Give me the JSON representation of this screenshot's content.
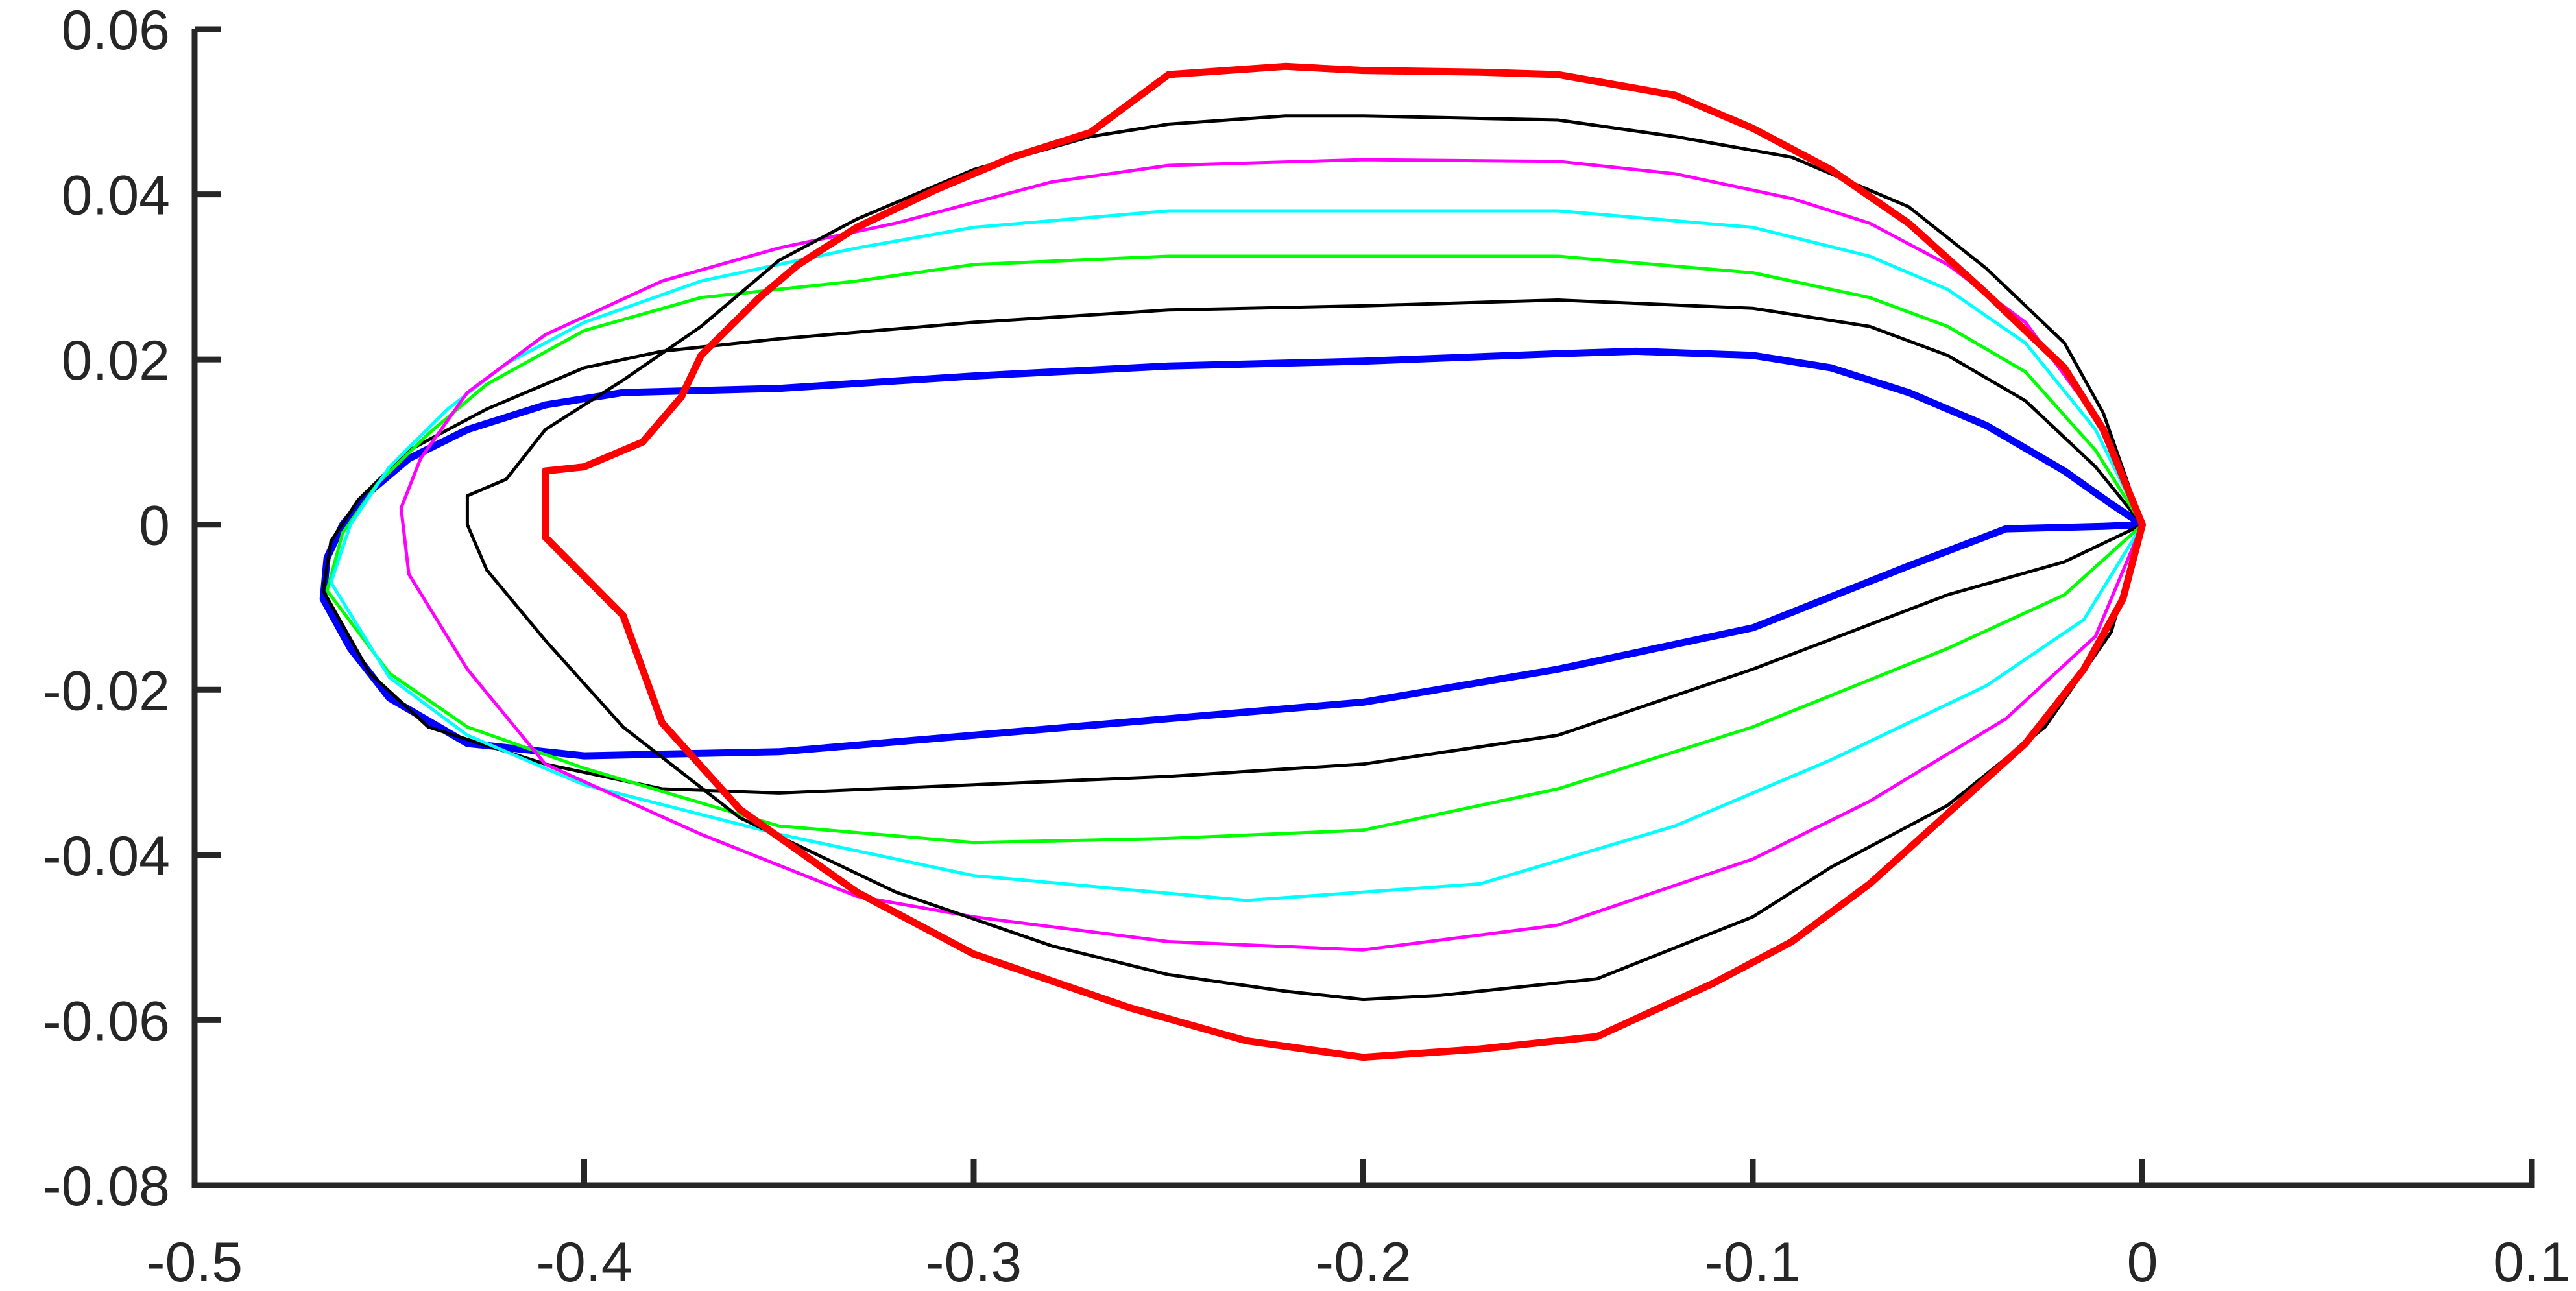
{
  "chart_data": {
    "type": "line",
    "title": "",
    "xlabel": "",
    "ylabel": "",
    "xlim": [
      -0.5,
      0.1
    ],
    "ylim": [
      -0.08,
      0.06
    ],
    "grid": false,
    "legend": "none",
    "xticks": [
      "-0.5",
      "-0.4",
      "-0.3",
      "-0.2",
      "-0.1",
      "0",
      "0.1"
    ],
    "yticks": [
      "0.06",
      "0.04",
      "0.02",
      "0",
      "-0.02",
      "-0.04",
      "-0.06",
      "-0.08"
    ],
    "series": [
      {
        "color": "#0000ff",
        "width": "thick",
        "points": [
          [
            -0.467,
            -0.009
          ],
          [
            -0.466,
            -0.004
          ],
          [
            -0.462,
            0.0
          ],
          [
            -0.455,
            0.004
          ],
          [
            -0.445,
            0.008
          ],
          [
            -0.43,
            0.0115
          ],
          [
            -0.41,
            0.0145
          ],
          [
            -0.39,
            0.016
          ],
          [
            -0.35,
            0.0165
          ],
          [
            -0.3,
            0.018
          ],
          [
            -0.25,
            0.0192
          ],
          [
            -0.2,
            0.0198
          ],
          [
            -0.15,
            0.0207
          ],
          [
            -0.13,
            0.021
          ],
          [
            -0.1,
            0.0205
          ],
          [
            -0.08,
            0.019
          ],
          [
            -0.06,
            0.016
          ],
          [
            -0.04,
            0.012
          ],
          [
            -0.02,
            0.0065
          ],
          [
            -0.008,
            0.0025
          ],
          [
            0.0,
            0.0
          ],
          [
            -0.01,
            -0.0002
          ],
          [
            -0.035,
            -0.0005
          ],
          [
            -0.06,
            -0.005
          ],
          [
            -0.1,
            -0.0125
          ],
          [
            -0.15,
            -0.0175
          ],
          [
            -0.2,
            -0.0215
          ],
          [
            -0.25,
            -0.0235
          ],
          [
            -0.3,
            -0.0255
          ],
          [
            -0.35,
            -0.0275
          ],
          [
            -0.4,
            -0.028
          ],
          [
            -0.43,
            -0.0265
          ],
          [
            -0.45,
            -0.021
          ],
          [
            -0.46,
            -0.015
          ],
          [
            -0.467,
            -0.009
          ]
        ]
      },
      {
        "color": "#000000",
        "width": "thin",
        "points": [
          [
            -0.467,
            -0.008
          ],
          [
            -0.465,
            -0.002
          ],
          [
            -0.458,
            0.003
          ],
          [
            -0.445,
            0.009
          ],
          [
            -0.425,
            0.014
          ],
          [
            -0.4,
            0.019
          ],
          [
            -0.38,
            0.021
          ],
          [
            -0.35,
            0.0225
          ],
          [
            -0.3,
            0.0245
          ],
          [
            -0.25,
            0.026
          ],
          [
            -0.2,
            0.0265
          ],
          [
            -0.15,
            0.0272
          ],
          [
            -0.1,
            0.0262
          ],
          [
            -0.07,
            0.024
          ],
          [
            -0.05,
            0.0205
          ],
          [
            -0.03,
            0.015
          ],
          [
            -0.012,
            0.007
          ],
          [
            0.0,
            0.0
          ],
          [
            -0.02,
            -0.0045
          ],
          [
            -0.05,
            -0.0085
          ],
          [
            -0.1,
            -0.0175
          ],
          [
            -0.15,
            -0.0255
          ],
          [
            -0.2,
            -0.029
          ],
          [
            -0.25,
            -0.0305
          ],
          [
            -0.3,
            -0.0315
          ],
          [
            -0.35,
            -0.0325
          ],
          [
            -0.38,
            -0.032
          ],
          [
            -0.41,
            -0.029
          ],
          [
            -0.44,
            -0.0245
          ],
          [
            -0.455,
            -0.018
          ],
          [
            -0.467,
            -0.008
          ]
        ]
      },
      {
        "color": "#00ff00",
        "width": "thin",
        "points": [
          [
            -0.466,
            -0.008
          ],
          [
            -0.462,
            -0.001
          ],
          [
            -0.453,
            0.005
          ],
          [
            -0.44,
            0.011
          ],
          [
            -0.425,
            0.017
          ],
          [
            -0.4,
            0.0235
          ],
          [
            -0.37,
            0.0275
          ],
          [
            -0.33,
            0.0295
          ],
          [
            -0.3,
            0.0315
          ],
          [
            -0.25,
            0.0325
          ],
          [
            -0.2,
            0.0325
          ],
          [
            -0.15,
            0.0325
          ],
          [
            -0.1,
            0.0305
          ],
          [
            -0.07,
            0.0275
          ],
          [
            -0.05,
            0.024
          ],
          [
            -0.03,
            0.0185
          ],
          [
            -0.012,
            0.009
          ],
          [
            0.0,
            0.0
          ],
          [
            -0.02,
            -0.0085
          ],
          [
            -0.05,
            -0.015
          ],
          [
            -0.1,
            -0.0245
          ],
          [
            -0.15,
            -0.032
          ],
          [
            -0.2,
            -0.037
          ],
          [
            -0.25,
            -0.038
          ],
          [
            -0.3,
            -0.0385
          ],
          [
            -0.35,
            -0.0365
          ],
          [
            -0.4,
            -0.0295
          ],
          [
            -0.43,
            -0.0245
          ],
          [
            -0.45,
            -0.018
          ],
          [
            -0.466,
            -0.008
          ]
        ]
      },
      {
        "color": "#00ffff",
        "width": "thin",
        "points": [
          [
            -0.465,
            -0.007
          ],
          [
            -0.46,
            0.0
          ],
          [
            -0.45,
            0.007
          ],
          [
            -0.435,
            0.014
          ],
          [
            -0.42,
            0.0195
          ],
          [
            -0.4,
            0.0245
          ],
          [
            -0.37,
            0.0295
          ],
          [
            -0.33,
            0.0335
          ],
          [
            -0.3,
            0.036
          ],
          [
            -0.25,
            0.038
          ],
          [
            -0.2,
            0.038
          ],
          [
            -0.15,
            0.038
          ],
          [
            -0.1,
            0.036
          ],
          [
            -0.07,
            0.0325
          ],
          [
            -0.05,
            0.0285
          ],
          [
            -0.03,
            0.022
          ],
          [
            -0.012,
            0.0115
          ],
          [
            0.0,
            0.0
          ],
          [
            -0.015,
            -0.0115
          ],
          [
            -0.04,
            -0.0195
          ],
          [
            -0.08,
            -0.0285
          ],
          [
            -0.12,
            -0.0365
          ],
          [
            -0.17,
            -0.0435
          ],
          [
            -0.23,
            -0.0455
          ],
          [
            -0.3,
            -0.0425
          ],
          [
            -0.35,
            -0.0375
          ],
          [
            -0.4,
            -0.0315
          ],
          [
            -0.43,
            -0.0255
          ],
          [
            -0.45,
            -0.0185
          ],
          [
            -0.465,
            -0.007
          ]
        ]
      },
      {
        "color": "#ff00ff",
        "width": "thin",
        "points": [
          [
            -0.447,
            0.002
          ],
          [
            -0.442,
            0.008
          ],
          [
            -0.43,
            0.016
          ],
          [
            -0.41,
            0.023
          ],
          [
            -0.38,
            0.0295
          ],
          [
            -0.35,
            0.0335
          ],
          [
            -0.32,
            0.0365
          ],
          [
            -0.3,
            0.039
          ],
          [
            -0.28,
            0.0415
          ],
          [
            -0.25,
            0.0435
          ],
          [
            -0.2,
            0.0442
          ],
          [
            -0.15,
            0.044
          ],
          [
            -0.12,
            0.0425
          ],
          [
            -0.09,
            0.0395
          ],
          [
            -0.07,
            0.0365
          ],
          [
            -0.05,
            0.0315
          ],
          [
            -0.03,
            0.0245
          ],
          [
            -0.012,
            0.013
          ],
          [
            0.0,
            0.0
          ],
          [
            -0.012,
            -0.0135
          ],
          [
            -0.035,
            -0.0235
          ],
          [
            -0.07,
            -0.0335
          ],
          [
            -0.1,
            -0.0405
          ],
          [
            -0.15,
            -0.0485
          ],
          [
            -0.2,
            -0.0515
          ],
          [
            -0.25,
            -0.0505
          ],
          [
            -0.3,
            -0.0475
          ],
          [
            -0.33,
            -0.045
          ],
          [
            -0.37,
            -0.0375
          ],
          [
            -0.41,
            -0.029
          ],
          [
            -0.43,
            -0.0175
          ],
          [
            -0.445,
            -0.006
          ],
          [
            -0.447,
            0.002
          ]
        ]
      },
      {
        "color": "#000000",
        "width": "thin",
        "points": [
          [
            -0.43,
            0.0035
          ],
          [
            -0.42,
            0.0055
          ],
          [
            -0.41,
            0.0115
          ],
          [
            -0.39,
            0.0175
          ],
          [
            -0.37,
            0.024
          ],
          [
            -0.35,
            0.032
          ],
          [
            -0.33,
            0.037
          ],
          [
            -0.3,
            0.043
          ],
          [
            -0.27,
            0.047
          ],
          [
            -0.25,
            0.0485
          ],
          [
            -0.22,
            0.0495
          ],
          [
            -0.2,
            0.0495
          ],
          [
            -0.15,
            0.049
          ],
          [
            -0.12,
            0.047
          ],
          [
            -0.09,
            0.0445
          ],
          [
            -0.06,
            0.0385
          ],
          [
            -0.04,
            0.031
          ],
          [
            -0.02,
            0.022
          ],
          [
            -0.01,
            0.0135
          ],
          [
            0.0,
            0.0
          ],
          [
            -0.008,
            -0.013
          ],
          [
            -0.025,
            -0.0245
          ],
          [
            -0.05,
            -0.034
          ],
          [
            -0.08,
            -0.0415
          ],
          [
            -0.1,
            -0.0475
          ],
          [
            -0.14,
            -0.055
          ],
          [
            -0.18,
            -0.057
          ],
          [
            -0.2,
            -0.0575
          ],
          [
            -0.22,
            -0.0565
          ],
          [
            -0.25,
            -0.0545
          ],
          [
            -0.28,
            -0.051
          ],
          [
            -0.32,
            -0.0445
          ],
          [
            -0.36,
            -0.0355
          ],
          [
            -0.39,
            -0.0245
          ],
          [
            -0.41,
            -0.014
          ],
          [
            -0.425,
            -0.0055
          ],
          [
            -0.43,
            0.0
          ],
          [
            -0.43,
            0.0035
          ]
        ]
      },
      {
        "color": "#ff0000",
        "width": "thick",
        "points": [
          [
            -0.41,
            0.0055
          ],
          [
            -0.41,
            0.0065
          ],
          [
            -0.4,
            0.007
          ],
          [
            -0.385,
            0.01
          ],
          [
            -0.375,
            0.0155
          ],
          [
            -0.37,
            0.0205
          ],
          [
            -0.355,
            0.0275
          ],
          [
            -0.345,
            0.0315
          ],
          [
            -0.33,
            0.036
          ],
          [
            -0.31,
            0.0405
          ],
          [
            -0.29,
            0.0445
          ],
          [
            -0.27,
            0.0475
          ],
          [
            -0.25,
            0.0545
          ],
          [
            -0.22,
            0.0555
          ],
          [
            -0.2,
            0.055
          ],
          [
            -0.17,
            0.0548
          ],
          [
            -0.15,
            0.0545
          ],
          [
            -0.12,
            0.052
          ],
          [
            -0.1,
            0.048
          ],
          [
            -0.08,
            0.043
          ],
          [
            -0.06,
            0.0365
          ],
          [
            -0.04,
            0.028
          ],
          [
            -0.02,
            0.019
          ],
          [
            -0.01,
            0.0115
          ],
          [
            0.0,
            0.0
          ],
          [
            -0.005,
            -0.009
          ],
          [
            -0.015,
            -0.0175
          ],
          [
            -0.03,
            -0.0265
          ],
          [
            -0.05,
            -0.035
          ],
          [
            -0.07,
            -0.0435
          ],
          [
            -0.09,
            -0.0505
          ],
          [
            -0.11,
            -0.0555
          ],
          [
            -0.14,
            -0.062
          ],
          [
            -0.17,
            -0.0635
          ],
          [
            -0.2,
            -0.0645
          ],
          [
            -0.23,
            -0.0625
          ],
          [
            -0.26,
            -0.0585
          ],
          [
            -0.3,
            -0.052
          ],
          [
            -0.33,
            -0.0445
          ],
          [
            -0.36,
            -0.0345
          ],
          [
            -0.38,
            -0.024
          ],
          [
            -0.39,
            -0.011
          ],
          [
            -0.41,
            -0.0015
          ],
          [
            -0.41,
            0.0055
          ]
        ]
      }
    ]
  }
}
